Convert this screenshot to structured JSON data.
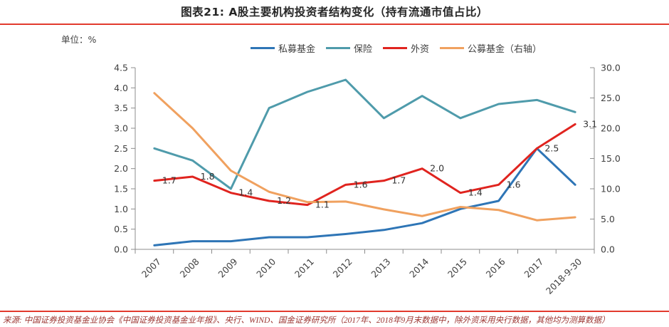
{
  "page": {
    "unit_label": "单位：%",
    "source_text": "来源: 中国证券投资基金业协会《中国证券投资基金业年报》、央行、WIND、国金证券研究所（2017年、2018年9月末数据中，除外资采用央行数据，其他均为测算数据）",
    "accent_red": "#e23a2e",
    "axis_color": "#8c8c8c",
    "axis_label_color": "#404040",
    "data_label_color": "#333333"
  },
  "chart_data": {
    "type": "line",
    "title": "图表21: A股主要机构投资者结构变化（持有流通市值占比）",
    "unit": "%",
    "grid": false,
    "legend_position": "top",
    "categories": [
      "2007",
      "2008",
      "2009",
      "2010",
      "2011",
      "2012",
      "2013",
      "2014",
      "2015",
      "2016",
      "2017",
      "2018-9-30"
    ],
    "left_axis": {
      "min": 0.0,
      "max": 4.5,
      "step": 0.5
    },
    "right_axis": {
      "min": 0.0,
      "max": 30.0,
      "step": 5.0
    },
    "series": [
      {
        "name": "私募基金",
        "color": "#2e75b6",
        "axis": "left",
        "values": [
          0.1,
          0.2,
          0.2,
          0.3,
          0.3,
          0.38,
          0.48,
          0.65,
          1.0,
          1.2,
          2.5,
          1.6
        ]
      },
      {
        "name": "保险",
        "color": "#4f9bab",
        "axis": "left",
        "values": [
          2.5,
          2.2,
          1.5,
          3.5,
          3.9,
          4.2,
          3.25,
          3.8,
          3.25,
          3.6,
          3.7,
          3.4
        ]
      },
      {
        "name": "外资",
        "color": "#e0241f",
        "axis": "left",
        "data_labels": true,
        "values": [
          1.7,
          1.8,
          1.4,
          1.2,
          1.1,
          1.6,
          1.7,
          2.0,
          1.4,
          1.6,
          2.5,
          3.1
        ]
      },
      {
        "name": "公募基金（右轴）",
        "color": "#f0a15f",
        "axis": "right",
        "values": [
          25.8,
          20.0,
          13.0,
          9.5,
          7.8,
          7.9,
          6.6,
          5.5,
          7.0,
          6.5,
          4.8,
          5.3
        ]
      }
    ]
  }
}
